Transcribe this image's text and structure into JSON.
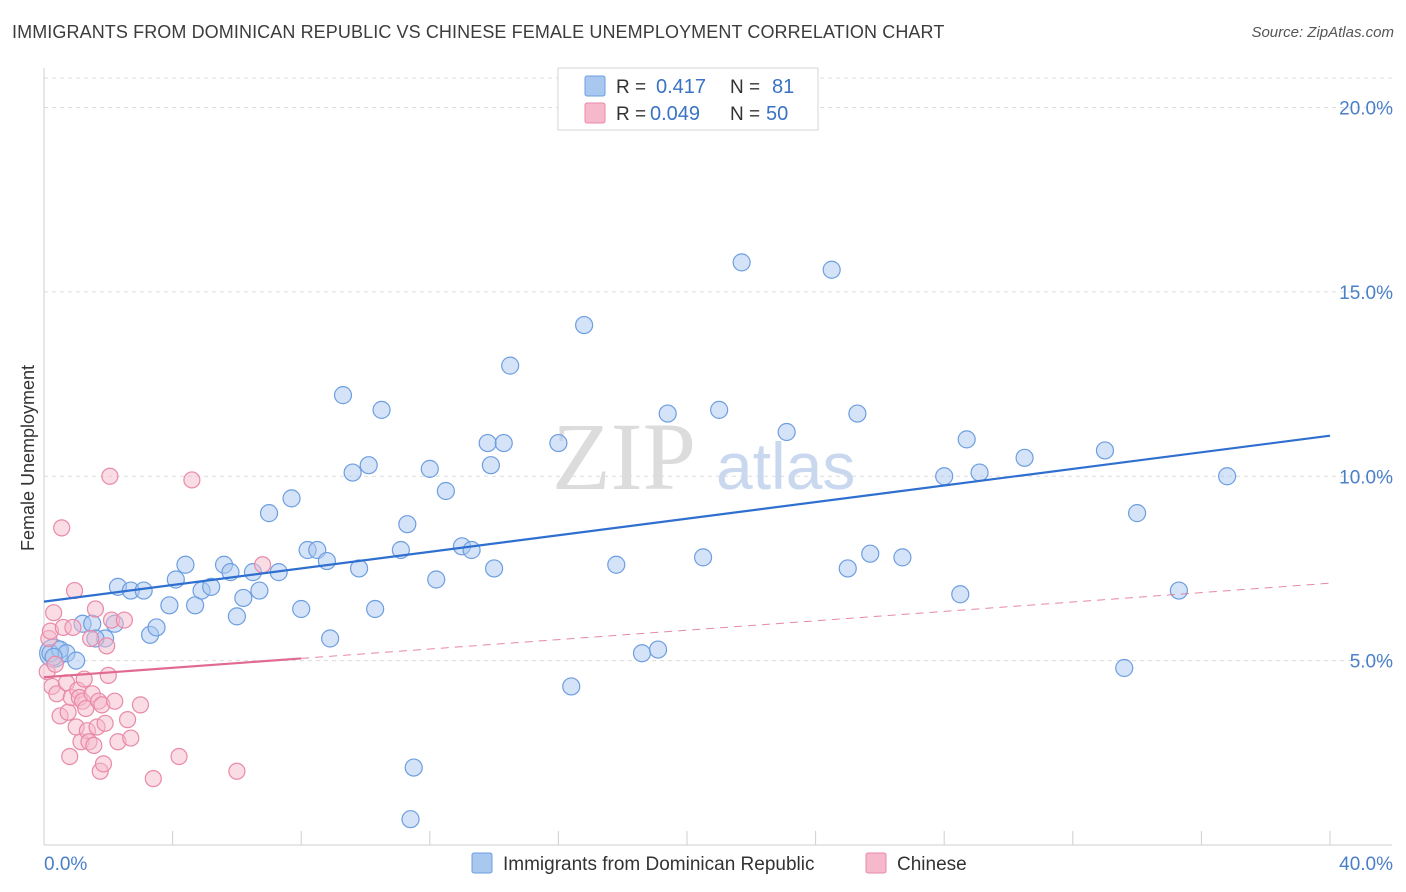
{
  "title": "IMMIGRANTS FROM DOMINICAN REPUBLIC VS CHINESE FEMALE UNEMPLOYMENT CORRELATION CHART",
  "source": "Source: ZipAtlas.com",
  "watermark": {
    "zip": "ZIP",
    "atlas": "atlas"
  },
  "colors": {
    "blue_fill": "#a9c8f0",
    "blue_stroke": "#6d9ee0",
    "blue_line": "#2f6fd0",
    "pink_fill": "#f6b9cb",
    "pink_stroke": "#e98aa8",
    "pink_line": "#e06a90",
    "grid": "#dcdcdc",
    "tick_text": "#4a7fc9"
  },
  "legend": {
    "rows": [
      {
        "r_label": "R =",
        "r_value": "0.417",
        "n_label": "N =",
        "n_value": "81"
      },
      {
        "r_label": "R =",
        "r_value": "0.049",
        "n_label": "N =",
        "n_value": "50"
      }
    ]
  },
  "chart_data": {
    "type": "scatter",
    "title": "IMMIGRANTS FROM DOMINICAN REPUBLIC VS CHINESE FEMALE UNEMPLOYMENT CORRELATION CHART",
    "xlabel": "",
    "ylabel": "Female Unemployment",
    "xlim": [
      0,
      40
    ],
    "ylim": [
      0,
      20.8
    ],
    "x_tick_labels": [
      {
        "value": 0,
        "label": "0.0%"
      },
      {
        "value": 40,
        "label": "40.0%"
      }
    ],
    "y_tick_labels": [
      {
        "value": 5,
        "label": "5.0%"
      },
      {
        "value": 10,
        "label": "10.0%"
      },
      {
        "value": 15,
        "label": "15.0%"
      },
      {
        "value": 20,
        "label": "20.0%"
      }
    ],
    "series": [
      {
        "name": "Immigrants from Dominican Republic",
        "color": "#a9c8f0",
        "trend": {
          "x0": 0,
          "y0": 6.6,
          "x1": 40,
          "y1": 11.1,
          "dashed_from": null
        },
        "points": [
          [
            0.2,
            5.2
          ],
          [
            0.5,
            5.3
          ],
          [
            0.7,
            5.2
          ],
          [
            1.0,
            5.0
          ],
          [
            1.2,
            6.0
          ],
          [
            1.5,
            6.0
          ],
          [
            1.9,
            5.6
          ],
          [
            2.2,
            6.0
          ],
          [
            2.3,
            7.0
          ],
          [
            2.7,
            6.9
          ],
          [
            3.1,
            6.9
          ],
          [
            3.3,
            5.7
          ],
          [
            3.5,
            5.9
          ],
          [
            3.9,
            6.5
          ],
          [
            4.1,
            7.2
          ],
          [
            4.4,
            7.6
          ],
          [
            4.7,
            6.5
          ],
          [
            4.9,
            6.9
          ],
          [
            5.2,
            7.0
          ],
          [
            5.6,
            7.6
          ],
          [
            5.8,
            7.4
          ],
          [
            6.0,
            6.2
          ],
          [
            6.2,
            6.7
          ],
          [
            6.5,
            7.4
          ],
          [
            6.7,
            6.9
          ],
          [
            7.0,
            9.0
          ],
          [
            7.3,
            7.4
          ],
          [
            7.7,
            9.4
          ],
          [
            8.0,
            6.4
          ],
          [
            8.2,
            8.0
          ],
          [
            8.5,
            8.0
          ],
          [
            8.8,
            7.7
          ],
          [
            8.9,
            5.6
          ],
          [
            9.3,
            12.2
          ],
          [
            9.6,
            10.1
          ],
          [
            9.8,
            7.5
          ],
          [
            10.1,
            10.3
          ],
          [
            10.3,
            6.4
          ],
          [
            10.5,
            11.8
          ],
          [
            11.1,
            8.0
          ],
          [
            11.3,
            8.7
          ],
          [
            11.5,
            2.1
          ],
          [
            11.4,
            0.7
          ],
          [
            12.0,
            10.2
          ],
          [
            12.2,
            7.2
          ],
          [
            12.5,
            9.6
          ],
          [
            13.0,
            8.1
          ],
          [
            13.3,
            8.0
          ],
          [
            13.8,
            10.9
          ],
          [
            13.9,
            10.3
          ],
          [
            14.0,
            7.5
          ],
          [
            14.3,
            10.9
          ],
          [
            14.5,
            13.0
          ],
          [
            16.0,
            10.9
          ],
          [
            16.4,
            4.3
          ],
          [
            16.8,
            14.1
          ],
          [
            17.8,
            7.6
          ],
          [
            18.6,
            5.2
          ],
          [
            19.1,
            5.3
          ],
          [
            19.4,
            11.7
          ],
          [
            20.5,
            7.8
          ],
          [
            21.0,
            11.8
          ],
          [
            21.7,
            15.8
          ],
          [
            23.1,
            11.2
          ],
          [
            24.5,
            15.6
          ],
          [
            25.0,
            7.5
          ],
          [
            25.3,
            11.7
          ],
          [
            25.7,
            7.9
          ],
          [
            26.7,
            7.8
          ],
          [
            28.0,
            10.0
          ],
          [
            28.5,
            6.8
          ],
          [
            28.7,
            11.0
          ],
          [
            29.1,
            10.1
          ],
          [
            30.5,
            10.5
          ],
          [
            33.0,
            10.7
          ],
          [
            33.6,
            4.8
          ],
          [
            34.0,
            9.0
          ],
          [
            35.3,
            6.9
          ],
          [
            36.8,
            10.0
          ],
          [
            0.3,
            5.1
          ],
          [
            1.6,
            5.6
          ]
        ]
      },
      {
        "name": "Chinese",
        "color": "#f6b9cb",
        "trend": {
          "x0": 0,
          "y0": 4.55,
          "x1": 40,
          "y1": 7.1,
          "dashed_from": 8.0
        },
        "points": [
          [
            0.1,
            4.7
          ],
          [
            0.15,
            5.6
          ],
          [
            0.2,
            5.8
          ],
          [
            0.25,
            4.3
          ],
          [
            0.3,
            6.3
          ],
          [
            0.35,
            4.9
          ],
          [
            0.4,
            4.1
          ],
          [
            0.5,
            3.5
          ],
          [
            0.55,
            8.6
          ],
          [
            0.6,
            5.9
          ],
          [
            0.7,
            4.4
          ],
          [
            0.75,
            3.6
          ],
          [
            0.8,
            2.4
          ],
          [
            0.85,
            4.0
          ],
          [
            0.9,
            5.9
          ],
          [
            0.95,
            6.9
          ],
          [
            1.0,
            3.2
          ],
          [
            1.05,
            4.2
          ],
          [
            1.1,
            4.0
          ],
          [
            1.15,
            2.8
          ],
          [
            1.2,
            3.9
          ],
          [
            1.25,
            4.5
          ],
          [
            1.3,
            3.7
          ],
          [
            1.35,
            3.1
          ],
          [
            1.4,
            2.8
          ],
          [
            1.45,
            5.6
          ],
          [
            1.5,
            4.1
          ],
          [
            1.55,
            2.7
          ],
          [
            1.6,
            6.4
          ],
          [
            1.65,
            3.2
          ],
          [
            1.7,
            3.9
          ],
          [
            1.75,
            2.0
          ],
          [
            1.8,
            3.8
          ],
          [
            1.85,
            2.2
          ],
          [
            1.9,
            3.3
          ],
          [
            1.95,
            5.4
          ],
          [
            2.0,
            4.6
          ],
          [
            2.05,
            10.0
          ],
          [
            2.1,
            6.1
          ],
          [
            2.2,
            3.9
          ],
          [
            2.3,
            2.8
          ],
          [
            2.5,
            6.1
          ],
          [
            2.6,
            3.4
          ],
          [
            2.7,
            2.9
          ],
          [
            3.0,
            3.8
          ],
          [
            3.4,
            1.8
          ],
          [
            4.2,
            2.4
          ],
          [
            4.6,
            9.9
          ],
          [
            6.0,
            2.0
          ],
          [
            6.8,
            7.6
          ]
        ]
      }
    ]
  },
  "bottom_legend": {
    "items": [
      {
        "label": "Immigrants from Dominican Republic"
      },
      {
        "label": "Chinese"
      }
    ]
  }
}
